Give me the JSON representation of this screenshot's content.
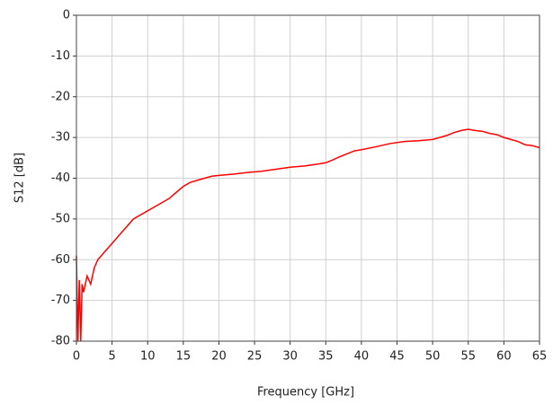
{
  "chart_data": {
    "type": "line",
    "xlabel": "Frequency [GHz]",
    "ylabel": "S12 [dB]",
    "x": [
      0,
      0.2,
      0.4,
      0.6,
      0.8,
      1.0,
      1.5,
      2,
      2.5,
      3,
      4,
      5,
      6,
      7,
      8,
      9,
      10,
      11,
      12,
      13,
      14,
      15,
      16,
      17,
      18,
      19,
      20,
      22,
      24,
      26,
      28,
      30,
      32,
      34,
      35,
      36,
      37,
      38,
      39,
      40,
      42,
      44,
      46,
      48,
      50,
      51,
      52,
      53,
      54,
      55,
      56,
      57,
      58,
      59,
      60,
      61,
      62,
      63,
      64,
      65
    ],
    "series": [
      {
        "name": "S12",
        "color": "#ff0000",
        "values": [
          -59,
          -80,
          -65,
          -80,
          -66,
          -68,
          -64,
          -66,
          -62,
          -60,
          -58,
          -56,
          -54,
          -52,
          -50,
          -49,
          -48,
          -47,
          -46,
          -45,
          -43.5,
          -42,
          -41,
          -40.5,
          -40,
          -39.5,
          -39.3,
          -39,
          -38.6,
          -38.3,
          -37.8,
          -37.3,
          -37,
          -36.5,
          -36.2,
          -35.5,
          -34.7,
          -34,
          -33.3,
          -33,
          -32.3,
          -31.5,
          -31,
          -30.8,
          -30.5,
          -30,
          -29.5,
          -28.8,
          -28.3,
          -28,
          -28.3,
          -28.5,
          -29,
          -29.3,
          -30,
          -30.5,
          -31,
          -31.8,
          -32,
          -32.5
        ]
      }
    ],
    "xlim": [
      0,
      65
    ],
    "xticks": [
      0,
      5,
      10,
      15,
      20,
      25,
      30,
      35,
      40,
      45,
      50,
      55,
      60,
      65
    ],
    "ylim": [
      -80,
      0
    ],
    "yticks": [
      0,
      -10,
      -20,
      -30,
      -40,
      -50,
      -60,
      -70,
      -80
    ],
    "grid": true
  }
}
